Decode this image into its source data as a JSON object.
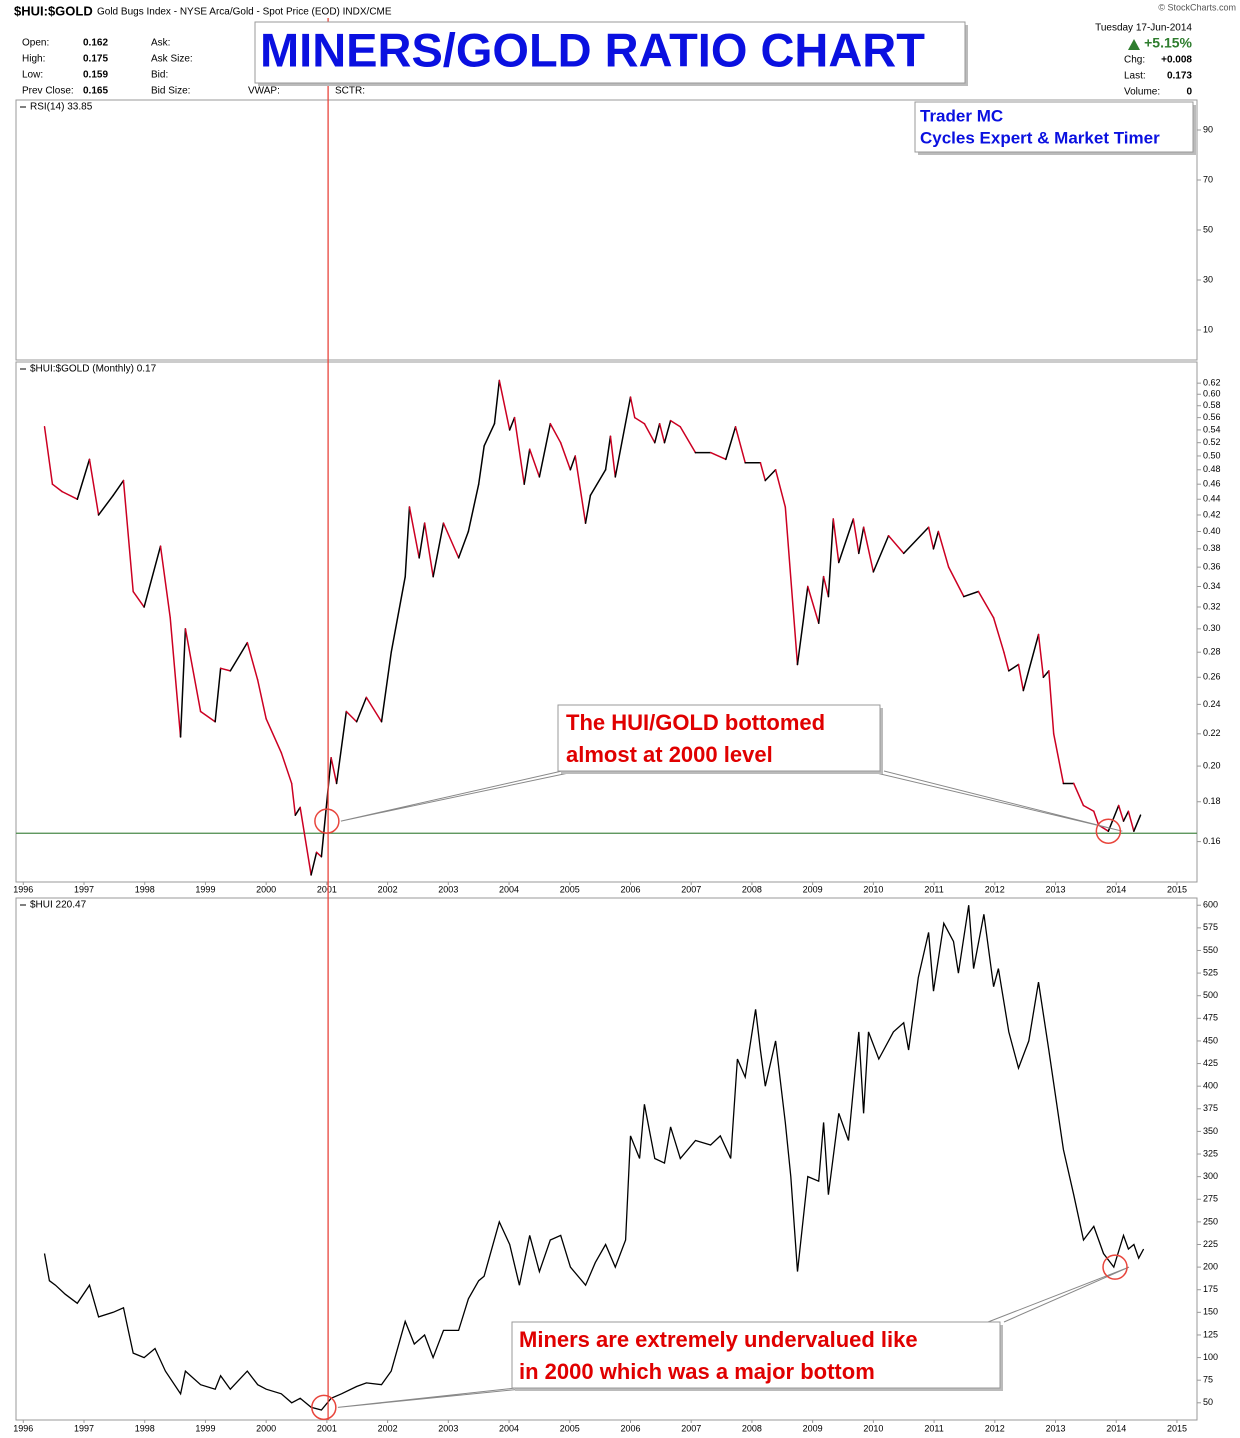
{
  "header": {
    "symbol": "$HUI:$GOLD",
    "description": "Gold Bugs Index - NYSE Arca/Gold - Spot Price (EOD) INDX/CME",
    "copyright": "© StockCharts.com",
    "date": "Tuesday 17-Jun-2014",
    "change_pct": "+5.15%",
    "quote": [
      {
        "label": "Open:",
        "value": "0.162"
      },
      {
        "label": "High:",
        "value": "0.175"
      },
      {
        "label": "Low:",
        "value": "0.159"
      },
      {
        "label": "Prev Close:",
        "value": "0.165"
      }
    ],
    "col2": [
      "Ask:",
      "Ask Size:",
      "Bid:",
      "Bid Size:"
    ],
    "col3": "VWAP:",
    "col4": "SCTR:",
    "right": [
      {
        "label": "Chg:",
        "value": "+0.008"
      },
      {
        "label": "Last:",
        "value": "0.173"
      },
      {
        "label": "Volume:",
        "value": "0"
      }
    ]
  },
  "title": "MINERS/GOLD RATIO CHART",
  "author": [
    "Trader MC",
    "Cycles Expert & Market Timer"
  ],
  "vline": {
    "x": 2001.02,
    "color": "#e8453c"
  },
  "chart_data": [
    {
      "type": "line",
      "title": "RSI(14) 33.85",
      "xlim": [
        1995.88,
        2015.33
      ],
      "ylim": [
        -2,
        102
      ],
      "yticks": [
        10,
        30,
        50,
        70,
        90
      ]
    },
    {
      "type": "updown",
      "title": "$HUI:$GOLD (Monthly) 0.17",
      "log": true,
      "up_color": "#000000",
      "down_color": "#cc0022",
      "xlim": [
        1995.88,
        2015.33
      ],
      "ylim": [
        0.142,
        0.66
      ],
      "xticks": [
        1996,
        1997,
        1998,
        1999,
        2000,
        2001,
        2002,
        2003,
        2004,
        2005,
        2006,
        2007,
        2008,
        2009,
        2010,
        2011,
        2012,
        2013,
        2014,
        2015
      ],
      "yticks": [
        0.16,
        0.18,
        {
          "value": 0.2,
          "label": "0.20"
        },
        0.22,
        0.24,
        0.26,
        0.28,
        {
          "value": 0.3,
          "label": "0.30"
        },
        0.32,
        0.34,
        0.36,
        0.38,
        {
          "value": 0.4,
          "label": "0.40"
        },
        0.42,
        0.44,
        0.46,
        0.48,
        {
          "value": 0.5,
          "label": "0.50"
        },
        0.52,
        0.54,
        0.56,
        0.58,
        {
          "value": 0.6,
          "label": "0.60"
        },
        0.62
      ],
      "x": [
        1996.35,
        1996.48,
        1996.64,
        1996.89,
        1997.09,
        1997.24,
        1997.48,
        1997.65,
        1997.81,
        1997.99,
        1998.26,
        1998.42,
        1998.59,
        1998.67,
        1998.92,
        1999.16,
        1999.25,
        1999.41,
        1999.69,
        1999.86,
        2000.0,
        2000.25,
        2000.42,
        2000.48,
        2000.56,
        2000.74,
        2000.83,
        2000.91,
        2001.07,
        2001.16,
        2001.32,
        2001.49,
        2001.65,
        2001.9,
        2002.06,
        2002.29,
        2002.36,
        2002.52,
        2002.61,
        2002.75,
        2002.92,
        2003.17,
        2003.33,
        2003.5,
        2003.59,
        2003.76,
        2003.84,
        2004.01,
        2004.09,
        2004.25,
        2004.34,
        2004.5,
        2004.68,
        2004.85,
        2005.01,
        2005.09,
        2005.26,
        2005.34,
        2005.59,
        2005.67,
        2005.75,
        2006.0,
        2006.07,
        2006.23,
        2006.4,
        2006.48,
        2006.56,
        2006.66,
        2006.82,
        2007.07,
        2007.32,
        2007.57,
        2007.73,
        2007.89,
        2008.14,
        2008.22,
        2008.39,
        2008.55,
        2008.75,
        2008.92,
        2009.1,
        2009.18,
        2009.26,
        2009.34,
        2009.43,
        2009.67,
        2009.76,
        2009.84,
        2010.0,
        2010.25,
        2010.5,
        2010.91,
        2010.99,
        2011.07,
        2011.24,
        2011.49,
        2011.73,
        2011.98,
        2012.15,
        2012.23,
        2012.39,
        2012.47,
        2012.72,
        2012.8,
        2012.89,
        2012.97,
        2013.13,
        2013.3,
        2013.46,
        2013.63,
        2013.71,
        2013.87,
        2014.04,
        2014.12,
        2014.2,
        2014.29,
        2014.4
      ],
      "values": [
        0.545,
        0.46,
        0.45,
        0.44,
        0.495,
        0.42,
        0.445,
        0.465,
        0.335,
        0.32,
        0.383,
        0.31,
        0.218,
        0.3,
        0.235,
        0.228,
        0.267,
        0.265,
        0.288,
        0.258,
        0.23,
        0.208,
        0.19,
        0.173,
        0.177,
        0.145,
        0.155,
        0.153,
        0.205,
        0.19,
        0.235,
        0.228,
        0.245,
        0.228,
        0.28,
        0.35,
        0.43,
        0.37,
        0.41,
        0.35,
        0.41,
        0.37,
        0.4,
        0.46,
        0.515,
        0.55,
        0.625,
        0.54,
        0.56,
        0.46,
        0.51,
        0.47,
        0.55,
        0.52,
        0.48,
        0.5,
        0.41,
        0.445,
        0.48,
        0.53,
        0.47,
        0.595,
        0.56,
        0.55,
        0.52,
        0.55,
        0.52,
        0.555,
        0.545,
        0.505,
        0.505,
        0.495,
        0.545,
        0.49,
        0.49,
        0.465,
        0.48,
        0.43,
        0.27,
        0.34,
        0.305,
        0.35,
        0.33,
        0.415,
        0.365,
        0.415,
        0.375,
        0.405,
        0.355,
        0.395,
        0.375,
        0.405,
        0.38,
        0.4,
        0.36,
        0.33,
        0.335,
        0.31,
        0.28,
        0.265,
        0.27,
        0.25,
        0.295,
        0.26,
        0.265,
        0.22,
        0.19,
        0.19,
        0.178,
        0.175,
        0.168,
        0.165,
        0.178,
        0.17,
        0.175,
        0.165,
        0.173
      ],
      "hline": {
        "value": 0.164,
        "color": "#4a8a4a"
      },
      "highlights": {
        "x": [
          2001.0,
          2013.87
        ],
        "values": [
          0.17,
          0.165
        ]
      },
      "callout": {
        "lines": [
          "The HUI/GOLD  bottomed",
          "almost at 2000 level"
        ],
        "color": "#e00000"
      }
    },
    {
      "type": "line",
      "title": "$HUI 220.47",
      "color": "#000000",
      "xlim": [
        1995.88,
        2015.33
      ],
      "ylim": [
        31,
        608
      ],
      "xticks": [
        1996,
        1997,
        1998,
        1999,
        2000,
        2001,
        2002,
        2003,
        2004,
        2005,
        2006,
        2007,
        2008,
        2009,
        2010,
        2011,
        2012,
        2013,
        2014,
        2015
      ],
      "yticks": [
        50,
        75,
        100,
        125,
        150,
        175,
        200,
        225,
        250,
        275,
        300,
        325,
        350,
        375,
        400,
        425,
        450,
        475,
        500,
        525,
        550,
        575,
        600
      ],
      "x": [
        1996.35,
        1996.43,
        1996.53,
        1996.69,
        1996.89,
        1997.09,
        1997.24,
        1997.48,
        1997.65,
        1997.73,
        1997.81,
        1997.99,
        1998.17,
        1998.34,
        1998.59,
        1998.67,
        1998.92,
        1999.16,
        1999.25,
        1999.41,
        1999.69,
        1999.86,
        2000.0,
        2000.25,
        2000.42,
        2000.56,
        2000.74,
        2000.91,
        2001.07,
        2001.24,
        2001.49,
        2001.65,
        2001.9,
        2002.06,
        2002.29,
        2002.44,
        2002.61,
        2002.75,
        2002.92,
        2003.17,
        2003.33,
        2003.5,
        2003.59,
        2003.84,
        2004.01,
        2004.17,
        2004.34,
        2004.5,
        2004.68,
        2004.85,
        2005.01,
        2005.26,
        2005.42,
        2005.59,
        2005.75,
        2005.92,
        2006.0,
        2006.15,
        2006.23,
        2006.4,
        2006.56,
        2006.66,
        2006.82,
        2007.07,
        2007.32,
        2007.48,
        2007.65,
        2007.76,
        2007.89,
        2008.06,
        2008.14,
        2008.22,
        2008.39,
        2008.55,
        2008.64,
        2008.75,
        2008.92,
        2009.1,
        2009.18,
        2009.26,
        2009.43,
        2009.59,
        2009.76,
        2009.84,
        2009.92,
        2010.09,
        2010.33,
        2010.5,
        2010.58,
        2010.74,
        2010.91,
        2010.99,
        2011.16,
        2011.32,
        2011.4,
        2011.57,
        2011.65,
        2011.82,
        2011.98,
        2012.06,
        2012.23,
        2012.39,
        2012.56,
        2012.72,
        2012.89,
        2013.13,
        2013.3,
        2013.46,
        2013.63,
        2013.79,
        2013.96,
        2014.12,
        2014.2,
        2014.29,
        2014.37,
        2014.45
      ],
      "values": [
        215,
        185,
        180,
        170,
        160,
        180,
        145,
        150,
        155,
        130,
        105,
        100,
        110,
        85,
        60,
        85,
        70,
        65,
        80,
        65,
        85,
        70,
        65,
        60,
        50,
        55,
        45,
        42,
        55,
        60,
        68,
        72,
        70,
        85,
        140,
        115,
        125,
        100,
        130,
        130,
        165,
        185,
        190,
        250,
        225,
        180,
        235,
        195,
        230,
        235,
        200,
        180,
        205,
        225,
        200,
        230,
        345,
        320,
        380,
        320,
        315,
        355,
        320,
        340,
        335,
        345,
        320,
        430,
        410,
        485,
        440,
        400,
        450,
        360,
        300,
        195,
        300,
        295,
        360,
        280,
        370,
        340,
        460,
        370,
        460,
        430,
        460,
        470,
        440,
        520,
        570,
        505,
        580,
        560,
        525,
        600,
        530,
        590,
        510,
        530,
        460,
        420,
        450,
        515,
        440,
        330,
        280,
        230,
        245,
        215,
        200,
        235,
        220,
        225,
        210,
        220
      ],
      "highlights": {
        "x": [
          2000.95,
          2013.98
        ],
        "values": [
          45,
          200
        ]
      },
      "callout": {
        "lines": [
          "Miners are extremely undervalued like",
          "in 2000 which was a major bottom"
        ],
        "color": "#e00000"
      }
    }
  ]
}
